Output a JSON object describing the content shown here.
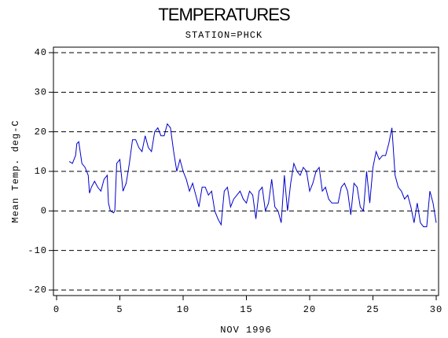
{
  "chart_data": {
    "type": "line",
    "title": "TEMPERATURES",
    "subtitle": "STATION=PHCK",
    "y_label": "Mean Temp. deg-C",
    "x_label": "NOV 1996",
    "xlim": [
      0,
      30
    ],
    "xticks": [
      0,
      5,
      10,
      15,
      20,
      25,
      30
    ],
    "ylim": [
      -20,
      40
    ],
    "yticks": [
      -20,
      -10,
      0,
      10,
      20,
      30,
      40
    ],
    "grid": true,
    "x": [
      1,
      1.25,
      1.5,
      1.6,
      1.75,
      2,
      2.25,
      2.5,
      2.6,
      2.75,
      3,
      3.25,
      3.5,
      3.75,
      4,
      4.1,
      4.25,
      4.5,
      4.6,
      4.75,
      5,
      5.25,
      5.5,
      5.75,
      6,
      6.25,
      6.5,
      6.75,
      7,
      7.25,
      7.5,
      7.75,
      8,
      8.25,
      8.5,
      8.75,
      9,
      9.25,
      9.5,
      9.75,
      10,
      10.25,
      10.5,
      10.75,
      11,
      11.25,
      11.5,
      11.75,
      12,
      12.25,
      12.5,
      12.75,
      13,
      13.25,
      13.5,
      13.75,
      14,
      14.25,
      14.5,
      14.75,
      15,
      15.25,
      15.5,
      15.75,
      16,
      16.25,
      16.5,
      16.75,
      17,
      17.25,
      17.5,
      17.75,
      18,
      18.25,
      18.5,
      18.75,
      19,
      19.25,
      19.5,
      19.75,
      20,
      20.25,
      20.5,
      20.75,
      21,
      21.25,
      21.5,
      21.75,
      22,
      22.25,
      22.5,
      22.75,
      23,
      23.25,
      23.5,
      23.75,
      24,
      24.25,
      24.5,
      24.75,
      25,
      25.25,
      25.5,
      25.75,
      26,
      26.25,
      26.5,
      26.75,
      27,
      27.25,
      27.5,
      27.75,
      28,
      28.25,
      28.5,
      28.75,
      29,
      29.25,
      29.5,
      29.75,
      30
    ],
    "series": [
      {
        "name": "Mean Temp.",
        "color": "#0000cc",
        "values": [
          12.5,
          12,
          14,
          17,
          17.5,
          12,
          11,
          9,
          4.5,
          6,
          7.5,
          6,
          5,
          8,
          9,
          2,
          0,
          -0.5,
          0,
          12,
          13,
          5,
          7,
          12,
          18,
          18,
          16,
          15,
          19,
          16,
          15,
          20,
          21,
          19,
          19,
          22,
          21,
          15,
          10,
          13,
          10,
          8,
          5,
          7,
          4,
          1,
          6,
          6,
          4,
          5,
          0,
          -2,
          -3.5,
          5,
          6,
          1,
          3,
          4,
          5,
          3,
          2,
          5,
          4,
          -2,
          5,
          6,
          0,
          2,
          8,
          1,
          0,
          -3,
          9,
          0,
          7,
          12,
          10,
          9,
          11,
          10,
          5,
          7,
          10,
          11,
          5,
          6,
          3,
          2,
          2,
          2,
          6,
          7,
          5,
          -1,
          7,
          6,
          1,
          0,
          10,
          2,
          11,
          15,
          13,
          14,
          14,
          17,
          21,
          9,
          6,
          5,
          3,
          4,
          1,
          -3,
          2,
          -3,
          -4,
          -4,
          5,
          2,
          -3
        ]
      }
    ]
  }
}
